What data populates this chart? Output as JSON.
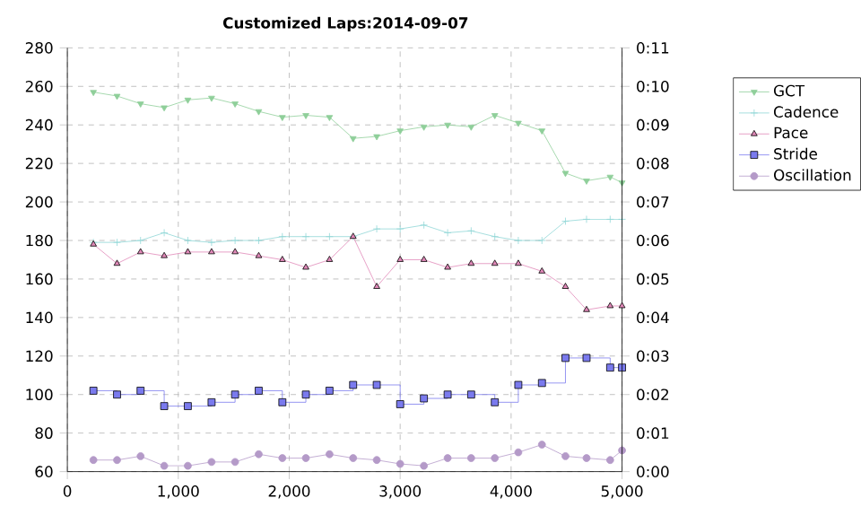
{
  "chart_data": {
    "type": "line",
    "title": "Customized Laps:2014-09-07",
    "x": [
      235,
      448,
      660,
      873,
      1086,
      1300,
      1512,
      1725,
      1938,
      2150,
      2363,
      2576,
      2789,
      3000,
      3214,
      3428,
      3640,
      3853,
      4065,
      4278,
      4490,
      4680,
      4893,
      5000
    ],
    "series": [
      {
        "name": "GCT",
        "color": "#8fcf9a",
        "marker": "triangle down",
        "values": [
          257,
          255,
          251,
          249,
          253,
          254,
          251,
          247,
          244,
          245,
          244,
          233,
          234,
          237,
          239,
          240,
          239,
          245,
          241,
          237,
          215,
          211,
          213,
          210
        ]
      },
      {
        "name": "Cadence",
        "color": "#8fd6d6",
        "marker": "cross",
        "values": [
          179,
          179,
          180,
          184,
          180,
          179,
          180,
          180,
          182,
          182,
          182,
          182,
          186,
          186,
          188,
          184,
          185,
          182,
          180,
          180,
          190,
          191,
          191,
          191
        ]
      },
      {
        "name": "Pace",
        "color": "#e088b8",
        "marker": "triangle",
        "axis": "y2",
        "values": [
          5.9,
          5.4,
          5.7,
          5.6,
          5.7,
          5.7,
          5.7,
          5.6,
          5.5,
          5.3,
          5.5,
          6.1,
          4.8,
          5.5,
          5.5,
          5.3,
          5.4,
          5.4,
          5.4,
          5.2,
          4.8,
          4.2,
          4.3,
          4.3
        ]
      },
      {
        "name": "Stride",
        "color": "#7a7aee",
        "marker": "square",
        "type": "step",
        "values": [
          102,
          100,
          102,
          94,
          94,
          96,
          100,
          102,
          96,
          100,
          102,
          105,
          105,
          95,
          98,
          100,
          100,
          96,
          105,
          106,
          119,
          119,
          114,
          114
        ]
      },
      {
        "name": "Oscillation",
        "color": "#b49ac8",
        "marker": "circle",
        "values": [
          66,
          66,
          68,
          63,
          63,
          65,
          65,
          69,
          67,
          67,
          69,
          67,
          66,
          64,
          63,
          67,
          67,
          67,
          70,
          74,
          68,
          67,
          66,
          71
        ]
      }
    ],
    "xlim": [
      0,
      5000
    ],
    "xticks": [
      0,
      {
        "value": 1000,
        "label": "1,000"
      },
      {
        "value": 2000,
        "label": "2,000"
      },
      {
        "value": 3000,
        "label": "3,000"
      },
      {
        "value": 4000,
        "label": "4,000"
      },
      {
        "value": 5000,
        "label": "5,000"
      }
    ],
    "ylim": [
      60,
      280
    ],
    "yticks": [
      60,
      80,
      100,
      120,
      140,
      160,
      180,
      200,
      220,
      240,
      260,
      280
    ],
    "y2lim": [
      0,
      11
    ],
    "y2ticks": [
      {
        "value": 0,
        "label": "0:00"
      },
      {
        "value": 1,
        "label": "0:01"
      },
      {
        "value": 2,
        "label": "0:02"
      },
      {
        "value": 3,
        "label": "0:03"
      },
      {
        "value": 4,
        "label": "0:04"
      },
      {
        "value": 5,
        "label": "0:05"
      },
      {
        "value": 6,
        "label": "0:06"
      },
      {
        "value": 7,
        "label": "0:07"
      },
      {
        "value": 8,
        "label": "0:08"
      },
      {
        "value": 9,
        "label": "0:09"
      },
      {
        "value": 10,
        "label": "0:10"
      },
      {
        "value": 11,
        "label": "0:11"
      }
    ],
    "grid": true,
    "legend": "right",
    "line_style": "solid"
  }
}
